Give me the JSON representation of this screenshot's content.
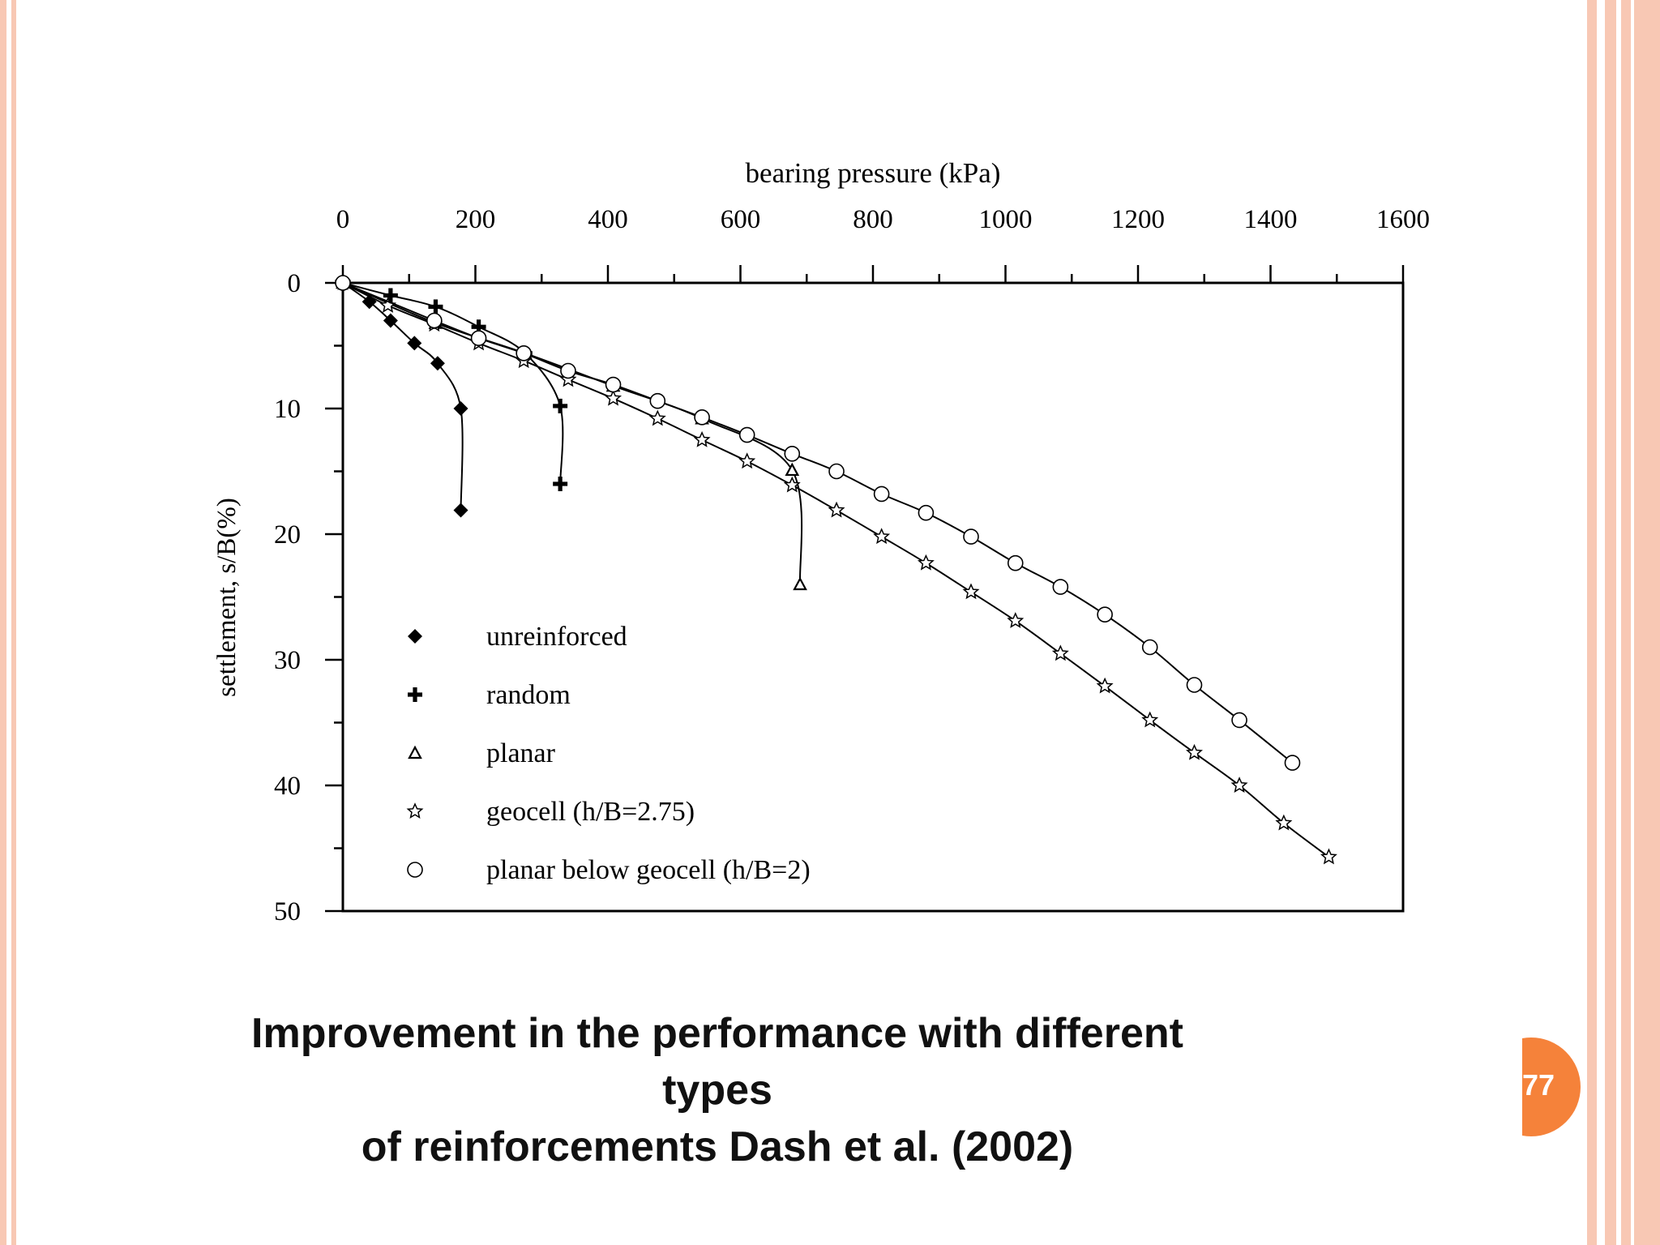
{
  "slide": {
    "caption_line1": "Improvement in the performance with different types",
    "caption_line2": "of reinforcements Dash et al. (2002)",
    "page_number": "77",
    "accent_color": "#f5823a",
    "border_color": "#f8c8b4"
  },
  "chart_data": {
    "type": "line",
    "title": "",
    "xlabel": "bearing pressure  (kPa)",
    "ylabel": "settlement, s/B(%)",
    "xlim": [
      0,
      1600
    ],
    "ylim": [
      0,
      50
    ],
    "x_axis_position": "top",
    "y_axis_inverted": true,
    "xticks": [
      0,
      200,
      400,
      600,
      800,
      1000,
      1200,
      1400,
      1600
    ],
    "yticks": [
      0,
      10,
      20,
      30,
      40,
      50
    ],
    "legend_position": "bottom-left",
    "series": [
      {
        "name": "unreinforced",
        "marker": "diamond-filled",
        "x": [
          0,
          40,
          72,
          108,
          143,
          178,
          178
        ],
        "y": [
          0,
          1.5,
          3,
          4.8,
          6.4,
          10,
          18.1
        ]
      },
      {
        "name": "random",
        "marker": "plus",
        "x": [
          0,
          72,
          140,
          205,
          275,
          328,
          328
        ],
        "y": [
          0,
          1,
          1.9,
          3.5,
          5.6,
          9.8,
          16
        ]
      },
      {
        "name": "planar",
        "marker": "triangle-open",
        "x": [
          0,
          140,
          275,
          408,
          542,
          678,
          690
        ],
        "y": [
          0,
          3.2,
          5.6,
          8.2,
          10.8,
          14.9,
          24
        ]
      },
      {
        "name": "geocell (h/B=2.75)",
        "marker": "star-open",
        "x": [
          0,
          68,
          138,
          205,
          273,
          340,
          408,
          475,
          542,
          610,
          678,
          745,
          813,
          880,
          948,
          1015,
          1083,
          1150,
          1218,
          1285,
          1353,
          1420,
          1488
        ],
        "y": [
          0,
          1.8,
          3.3,
          4.8,
          6.2,
          7.7,
          9.2,
          10.8,
          12.5,
          14.2,
          16.1,
          18.1,
          20.2,
          22.3,
          24.6,
          26.9,
          29.5,
          32.1,
          34.8,
          37.4,
          40,
          43,
          45.7
        ]
      },
      {
        "name": "planar below geocell (h/B=2)",
        "marker": "circle-open",
        "x": [
          0,
          138,
          205,
          273,
          340,
          408,
          475,
          542,
          610,
          678,
          745,
          813,
          880,
          948,
          1015,
          1083,
          1150,
          1218,
          1285,
          1353,
          1433
        ],
        "y": [
          0,
          3,
          4.4,
          5.6,
          7,
          8.1,
          9.4,
          10.7,
          12.1,
          13.6,
          15,
          16.8,
          18.3,
          20.2,
          22.3,
          24.2,
          26.4,
          29,
          32,
          34.8,
          38.2
        ]
      }
    ]
  }
}
